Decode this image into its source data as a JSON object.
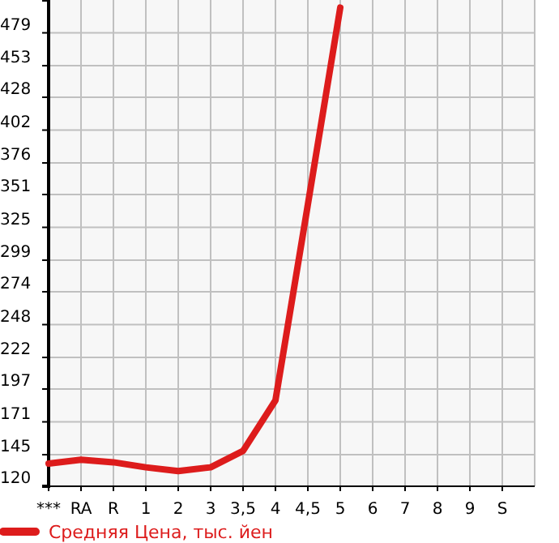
{
  "chart_data": {
    "type": "line",
    "categories": [
      "***",
      "RA",
      "R",
      "1",
      "2",
      "3",
      "3,5",
      "4",
      "4,5",
      "5",
      "6",
      "7",
      "8",
      "9",
      "S"
    ],
    "series": [
      {
        "name": "Средняя Цена, тыс. йен",
        "color": "#dd1c1c",
        "values": [
          138,
          141,
          139,
          135,
          132,
          135,
          148,
          188,
          343,
          499,
          null,
          null,
          null,
          null,
          null
        ]
      }
    ],
    "ylim": [
      120,
      505
    ],
    "yticks": [
      120,
      145,
      171,
      197,
      222,
      248,
      274,
      299,
      325,
      351,
      376,
      402,
      428,
      453,
      479
    ],
    "grid": true,
    "legend": "bottom",
    "marker": "none",
    "line_style": "solid"
  }
}
